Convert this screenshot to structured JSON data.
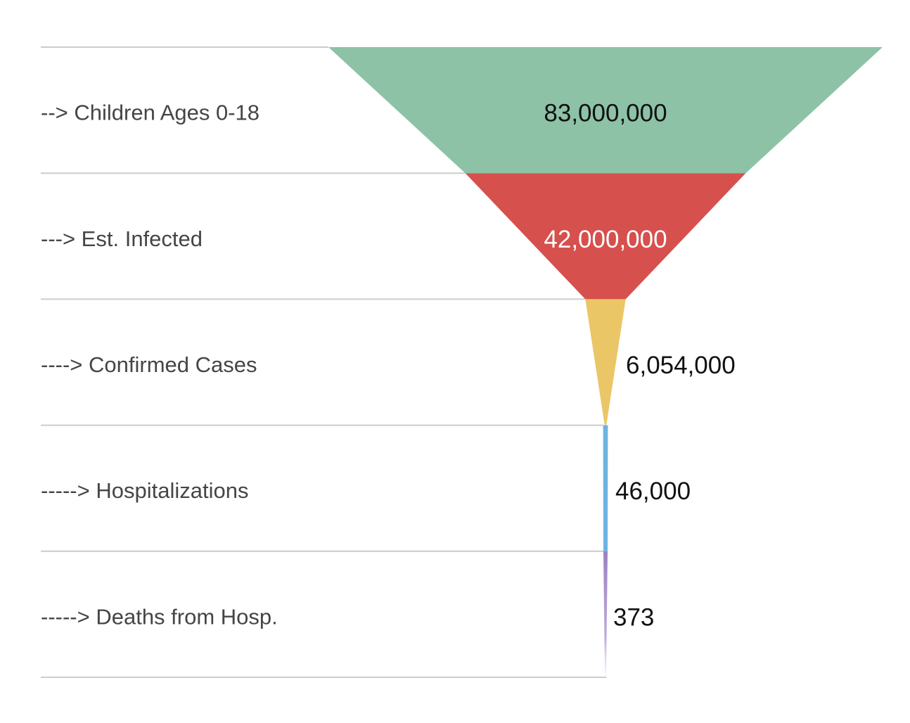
{
  "chart_data": {
    "type": "funnel",
    "title": "",
    "orientation": "vertical-tapering",
    "background_color": "#ffffff",
    "separator_line_color": "#cccccc",
    "label_color": "#454545",
    "value_color": "#111111",
    "stages": [
      {
        "label": "--> Children Ages 0-18",
        "value": 83000000,
        "value_display": "83,000,000",
        "color": "#8dc2a6",
        "value_text_color": "#111111",
        "value_position": "inside-center"
      },
      {
        "label": "---> Est. Infected",
        "value": 42000000,
        "value_display": "42,000,000",
        "color": "#d6504d",
        "value_text_color": "#ffffff",
        "value_position": "inside-center"
      },
      {
        "label": "----> Confirmed Cases",
        "value": 6054000,
        "value_display": "6,054,000",
        "color": "#ebc667",
        "value_text_color": "#111111",
        "value_position": "right-of-funnel"
      },
      {
        "label": "-----> Hospitalizations",
        "value": 46000,
        "value_display": "46,000",
        "color": "#6cb4e2",
        "value_text_color": "#111111",
        "value_position": "right-of-funnel"
      },
      {
        "label": "-----> Deaths from Hosp.",
        "value": 373,
        "value_display": "373",
        "color": "#9b80c4",
        "color_fade_to": "#ddd5ec",
        "value_text_color": "#111111",
        "value_position": "right-of-funnel"
      }
    ]
  }
}
